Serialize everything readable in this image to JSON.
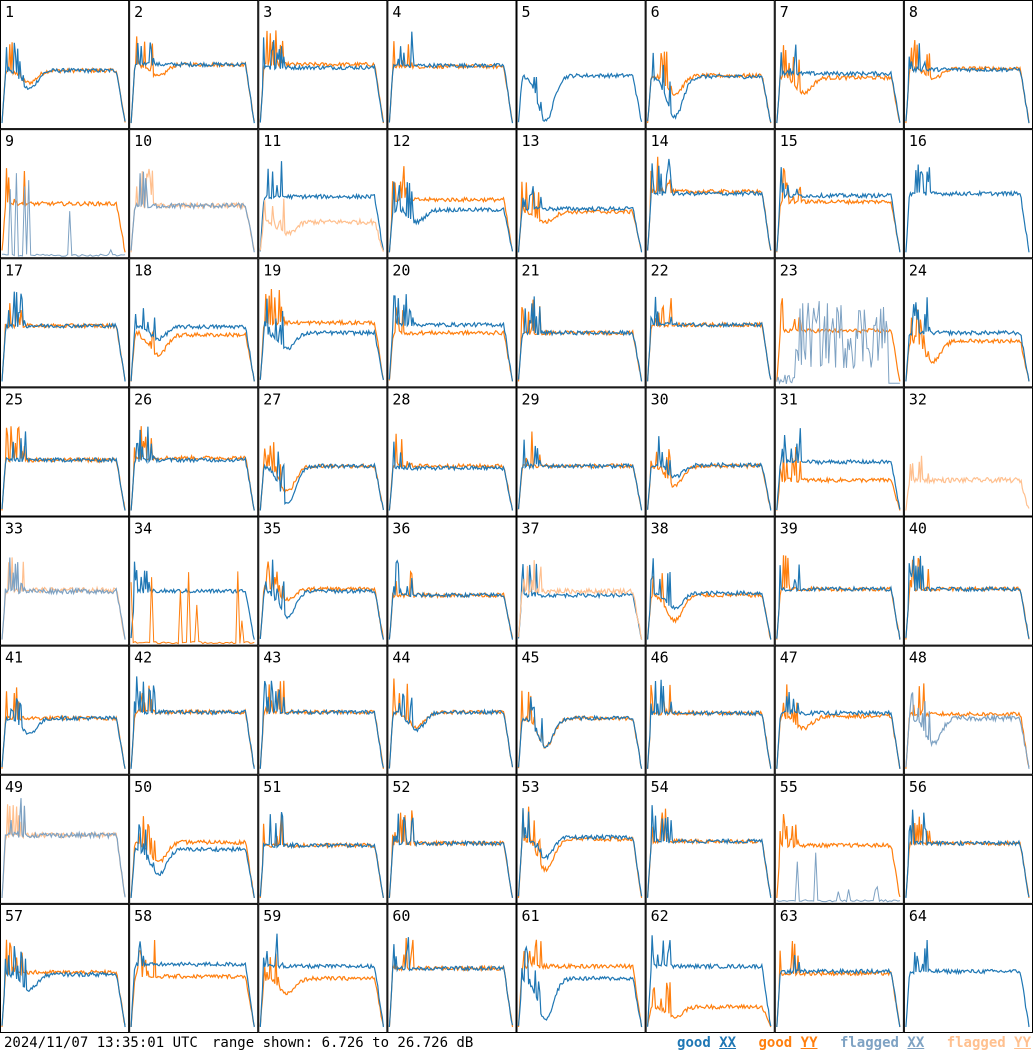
{
  "footer": {
    "timestamp": "2024/11/07 13:35:01 UTC",
    "range_text": "range shown: 6.726 to 26.726 dB"
  },
  "legend": [
    {
      "word": "good",
      "pol": "XX",
      "color": "#1f77b4"
    },
    {
      "word": "good",
      "pol": "YY",
      "color": "#ff7f0e"
    },
    {
      "word": "flagged",
      "pol": "XX",
      "color": "#7ea2c3"
    },
    {
      "word": "flagged",
      "pol": "YY",
      "color": "#ffc08f"
    }
  ],
  "colors": {
    "good_xx": "#1f77b4",
    "good_yy": "#ff7f0e",
    "flagged_xx": "#7ea2c3",
    "flagged_yy": "#ffc08f"
  },
  "chart_data": {
    "type": "line",
    "title": "",
    "layout": "8x8 grid of antenna spectra",
    "y_range_db": [
      6.726,
      26.726
    ],
    "grid": false,
    "legend_position": "bottom-right",
    "panel_labels": [
      "1",
      "2",
      "3",
      "4",
      "5",
      "6",
      "7",
      "8",
      "9",
      "10",
      "11",
      "12",
      "13",
      "14",
      "15",
      "16",
      "17",
      "18",
      "19",
      "20",
      "21",
      "22",
      "23",
      "24",
      "25",
      "26",
      "27",
      "28",
      "29",
      "30",
      "31",
      "32",
      "33",
      "34",
      "35",
      "36",
      "37",
      "38",
      "39",
      "40",
      "41",
      "42",
      "43",
      "44",
      "45",
      "46",
      "47",
      "48",
      "49",
      "50",
      "51",
      "52",
      "53",
      "54",
      "55",
      "56",
      "57",
      "58",
      "59",
      "60",
      "61",
      "62",
      "63",
      "64"
    ],
    "panels": {
      "1": {
        "xx": {
          "level": 0.52,
          "dip": 0.18
        },
        "yy": {
          "level": 0.52,
          "dip": 0.12
        }
      },
      "2": {
        "xx": {
          "level": 0.58
        },
        "yy": {
          "level": 0.58,
          "dip": 0.12
        }
      },
      "3": {
        "xx": {
          "level": 0.55
        },
        "yy": {
          "level": 0.58
        }
      },
      "4": {
        "xx": {
          "level": 0.57
        },
        "yy": {
          "level": 0.56
        }
      },
      "5": {
        "xx": {
          "level": 0.47,
          "dip": 0.45
        }
      },
      "6": {
        "xx": {
          "level": 0.46,
          "dip": 0.4
        },
        "yy": {
          "level": 0.47,
          "dip": 0.18
        }
      },
      "7": {
        "xx": {
          "level": 0.49
        },
        "yy": {
          "level": 0.45,
          "dip": 0.15
        }
      },
      "8": {
        "xx": {
          "level": 0.53
        },
        "yy": {
          "level": 0.54,
          "dip": 0.1
        }
      },
      "9": {
        "xx_flag": "low",
        "yy": {
          "level": 0.48
        }
      },
      "10": {
        "xx_flagged": {
          "level": 0.46
        },
        "yy_flagged": {
          "level": 0.46
        }
      },
      "11": {
        "xx": {
          "level": 0.55
        },
        "yy_flagged": {
          "level": 0.3,
          "dip": 0.12
        }
      },
      "12": {
        "xx": {
          "level": 0.42,
          "dip": 0.12
        },
        "yy": {
          "level": 0.52
        }
      },
      "13": {
        "xx": {
          "level": 0.43
        },
        "yy": {
          "level": 0.4,
          "dip": 0.1
        }
      },
      "14": {
        "xx": {
          "level": 0.58
        },
        "yy": {
          "level": 0.6
        }
      },
      "15": {
        "xx": {
          "level": 0.56
        },
        "yy": {
          "level": 0.5
        }
      },
      "16": {
        "xx": {
          "level": 0.58
        }
      },
      "17": {
        "xx": {
          "level": 0.55
        },
        "yy": {
          "level": 0.55
        }
      },
      "18": {
        "xx": {
          "level": 0.54,
          "dip": 0.12
        },
        "yy": {
          "level": 0.46,
          "dip": 0.2
        }
      },
      "19": {
        "xx": {
          "level": 0.48,
          "dip": 0.15
        },
        "yy": {
          "level": 0.58
        }
      },
      "20": {
        "xx": {
          "level": 0.56
        },
        "yy": {
          "level": 0.48
        }
      },
      "21": {
        "xx": {
          "level": 0.48
        },
        "yy": {
          "level": 0.48
        }
      },
      "22": {
        "xx": {
          "level": 0.56
        },
        "yy": {
          "level": 0.56
        }
      },
      "23": {
        "xx_flag": "noisy",
        "yy": {
          "level": 0.5
        }
      },
      "24": {
        "xx": {
          "level": 0.48
        },
        "yy": {
          "level": 0.4,
          "dip": 0.2
        }
      },
      "25": {
        "xx": {
          "level": 0.5
        },
        "yy": {
          "level": 0.5
        }
      },
      "26": {
        "xx": {
          "level": 0.5
        },
        "yy": {
          "level": 0.52
        }
      },
      "27": {
        "xx": {
          "level": 0.44,
          "dip": 0.38
        },
        "yy": {
          "level": 0.44,
          "dip": 0.25
        }
      },
      "28": {
        "xx": {
          "level": 0.42
        },
        "yy": {
          "level": 0.44
        }
      },
      "29": {
        "xx": {
          "level": 0.44
        },
        "yy": {
          "level": 0.44
        }
      },
      "30": {
        "xx": {
          "level": 0.45,
          "dip": 0.12
        },
        "yy": {
          "level": 0.44,
          "dip": 0.2
        }
      },
      "31": {
        "xx": {
          "level": 0.48
        },
        "yy": {
          "level": 0.3
        }
      },
      "32": {
        "yy_flagged": {
          "level": 0.3
        }
      },
      "33": {
        "xx_flagged": {
          "level": 0.48
        },
        "yy_flagged": {
          "level": 0.49
        }
      },
      "34": {
        "xx": {
          "level": 0.48
        },
        "yy_flag": "low"
      },
      "35": {
        "xx": {
          "level": 0.48,
          "dip": 0.25
        },
        "yy": {
          "level": 0.5,
          "dip": 0.1
        }
      },
      "36": {
        "xx": {
          "level": 0.44
        },
        "yy": {
          "level": 0.44
        }
      },
      "37": {
        "xx": {
          "level": 0.44
        },
        "yy_flagged": {
          "level": 0.48
        }
      },
      "38": {
        "xx": {
          "level": 0.46,
          "dip": 0.15
        },
        "yy": {
          "level": 0.44,
          "dip": 0.25
        }
      },
      "39": {
        "xx": {
          "level": 0.5
        },
        "yy": {
          "level": 0.5
        }
      },
      "40": {
        "xx": {
          "level": 0.5
        },
        "yy": {
          "level": 0.5
        }
      },
      "41": {
        "xx": {
          "level": 0.5,
          "dip": 0.15
        },
        "yy": {
          "level": 0.5
        }
      },
      "42": {
        "xx": {
          "level": 0.56
        },
        "yy": {
          "level": 0.56
        }
      },
      "43": {
        "xx": {
          "level": 0.56
        },
        "yy": {
          "level": 0.56
        }
      },
      "44": {
        "xx": {
          "level": 0.56,
          "dip": 0.18
        },
        "yy": {
          "level": 0.56,
          "dip": 0.15
        }
      },
      "45": {
        "xx": {
          "level": 0.5,
          "dip": 0.28
        },
        "yy": {
          "level": 0.5,
          "dip": 0.28
        }
      },
      "46": {
        "xx": {
          "level": 0.55
        },
        "yy": {
          "level": 0.55
        }
      },
      "47": {
        "xx": {
          "level": 0.55
        },
        "yy": {
          "level": 0.52,
          "dip": 0.12
        }
      },
      "48": {
        "xx_flagged": {
          "level": 0.5,
          "dip": 0.25
        },
        "yy": {
          "level": 0.54
        }
      },
      "49": {
        "xx_flagged": {
          "level": 0.62
        },
        "yy_flagged": {
          "level": 0.62
        }
      },
      "50": {
        "xx": {
          "level": 0.48,
          "dip": 0.25
        },
        "yy": {
          "level": 0.55,
          "dip": 0.2
        }
      },
      "51": {
        "xx": {
          "level": 0.52
        },
        "yy": {
          "level": 0.52
        }
      },
      "52": {
        "xx": {
          "level": 0.54
        },
        "yy": {
          "level": 0.54
        }
      },
      "53": {
        "xx": {
          "level": 0.6,
          "dip": 0.2
        },
        "yy": {
          "level": 0.58,
          "dip": 0.3
        }
      },
      "54": {
        "xx": {
          "level": 0.56
        },
        "yy": {
          "level": 0.56
        }
      },
      "55": {
        "xx_flag": "low",
        "yy": {
          "level": 0.52
        }
      },
      "56": {
        "xx": {
          "level": 0.54
        },
        "yy": {
          "level": 0.54
        }
      },
      "57": {
        "xx": {
          "level": 0.52,
          "dip": 0.15
        },
        "yy": {
          "level": 0.54
        }
      },
      "58": {
        "xx": {
          "level": 0.62
        },
        "yy": {
          "level": 0.5
        }
      },
      "59": {
        "xx": {
          "level": 0.6
        },
        "yy": {
          "level": 0.48,
          "dip": 0.15
        }
      },
      "60": {
        "xx": {
          "level": 0.58
        },
        "yy": {
          "level": 0.58
        }
      },
      "61": {
        "xx": {
          "level": 0.48,
          "dip": 0.4
        },
        "yy": {
          "level": 0.6
        }
      },
      "62": {
        "xx": {
          "level": 0.6
        },
        "yy": {
          "level": 0.2,
          "dip": 0.1
        }
      },
      "63": {
        "xx": {
          "level": 0.55
        },
        "yy": {
          "level": 0.53
        }
      },
      "64": {
        "xx": {
          "level": 0.55
        }
      }
    }
  }
}
